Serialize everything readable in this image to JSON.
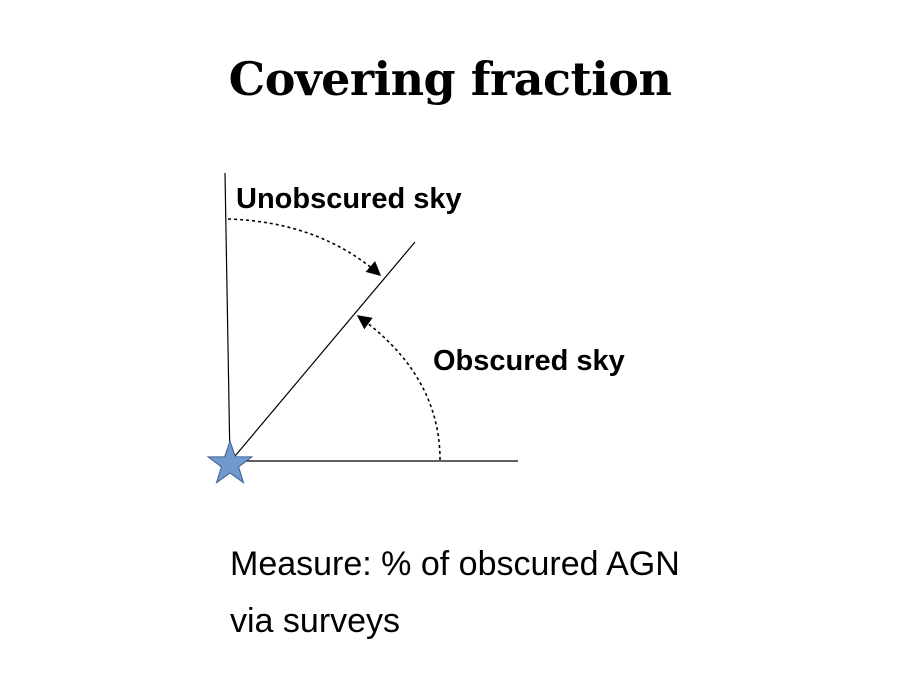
{
  "slide": {
    "title": "Covering fraction",
    "labels": {
      "unobscured": "Unobscured sky",
      "obscured": "Obscured sky"
    },
    "body_lines": [
      "Measure: % of obscured AGN",
      "via surveys"
    ],
    "colors": {
      "star_fill": "#6f99cf",
      "star_stroke": "#3f5f8f",
      "lines": "#000000"
    },
    "icons": {
      "source": "star-icon"
    }
  }
}
